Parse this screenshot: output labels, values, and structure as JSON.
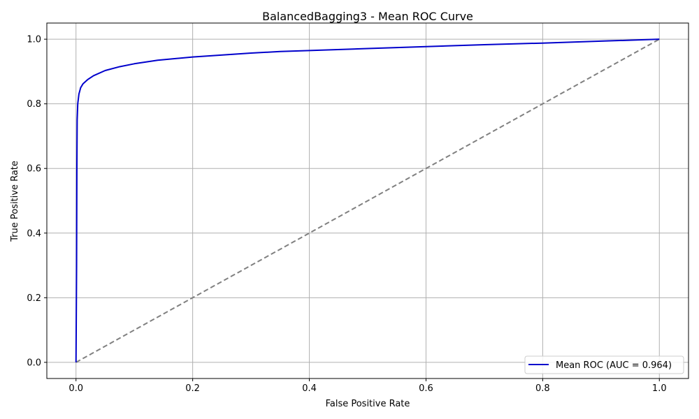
{
  "chart_data": {
    "type": "line",
    "title": "BalancedBagging3 - Mean ROC Curve",
    "xlabel": "False Positive Rate",
    "ylabel": "True Positive Rate",
    "xlim": [
      -0.05,
      1.05
    ],
    "ylim": [
      -0.05,
      1.05
    ],
    "xticks": [
      0.0,
      0.2,
      0.4,
      0.6,
      0.8,
      1.0
    ],
    "xtick_labels": [
      "0.0",
      "0.2",
      "0.4",
      "0.6",
      "0.8",
      "1.0"
    ],
    "yticks": [
      0.0,
      0.2,
      0.4,
      0.6,
      0.8,
      1.0
    ],
    "ytick_labels": [
      "0.0",
      "0.2",
      "0.4",
      "0.6",
      "0.8",
      "1.0"
    ],
    "grid": true,
    "legend_position": "lower-right",
    "series": [
      {
        "name": "Mean ROC (AUC = 0.964)",
        "color": "#0000cc",
        "style": "solid",
        "x": [
          0.0,
          0.001,
          0.0015,
          0.002,
          0.003,
          0.005,
          0.008,
          0.012,
          0.02,
          0.03,
          0.05,
          0.075,
          0.1,
          0.14,
          0.2,
          0.3,
          0.35,
          0.4,
          0.5,
          0.6,
          0.7,
          0.8,
          0.9,
          1.0
        ],
        "y": [
          0.0,
          0.3,
          0.6,
          0.75,
          0.8,
          0.83,
          0.85,
          0.862,
          0.875,
          0.887,
          0.903,
          0.915,
          0.924,
          0.935,
          0.945,
          0.957,
          0.962,
          0.965,
          0.971,
          0.977,
          0.983,
          0.988,
          0.994,
          1.0
        ]
      },
      {
        "name": "",
        "color": "#808080",
        "style": "dashed",
        "x": [
          0.0,
          1.0
        ],
        "y": [
          0.0,
          1.0
        ]
      }
    ]
  }
}
